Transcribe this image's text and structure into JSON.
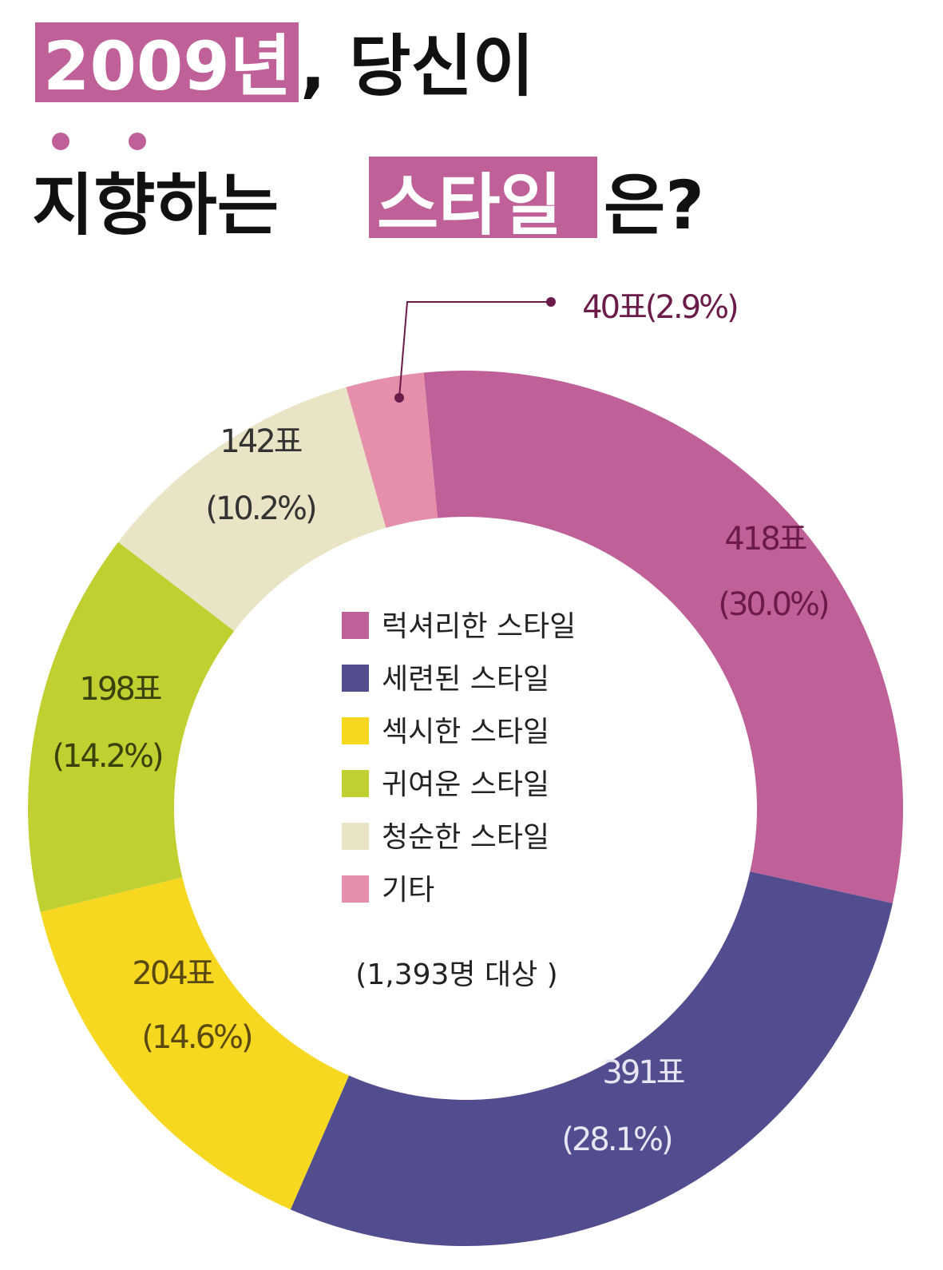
{
  "title": {
    "line1_highlight": "2009년",
    "line1_rest": ", 당신이",
    "line2_prefix": "지향하는 ",
    "line2_highlight": "스타일",
    "line2_suffix": "은?"
  },
  "colors": {
    "accent": "#bf6198",
    "title": "#111111"
  },
  "chart_data": {
    "type": "pie",
    "donut": true,
    "total_label": "(1,393명 대상 )",
    "categories": [
      "럭셔리한 스타일",
      "세련된 스타일",
      "섹시한 스타일",
      "귀여운 스타일",
      "청순한 스타일",
      "기타"
    ],
    "values": [
      418,
      391,
      204,
      198,
      142,
      40
    ],
    "percents": [
      30.0,
      28.1,
      14.6,
      14.2,
      10.2,
      2.9
    ],
    "colors": [
      "#bf6198",
      "#524d8f",
      "#f7d820",
      "#c0d030",
      "#e9e4c6",
      "#e58fab"
    ],
    "labels": [
      {
        "votes": "418표",
        "pct": "(30.0%)",
        "color": "#6b1b4a"
      },
      {
        "votes": "391표",
        "pct": "(28.1%)",
        "color": "#e8e6f4"
      },
      {
        "votes": "204표",
        "pct": "(14.6%)",
        "color": "#5a4a10"
      },
      {
        "votes": "198표",
        "pct": "(14.2%)",
        "color": "#3a420c"
      },
      {
        "votes": "142표",
        "pct": "(10.2%)",
        "color": "#333333"
      },
      {
        "votes": "40표(2.9%)",
        "pct": "",
        "color": "#6b1b4a"
      }
    ],
    "legend_placement": "center"
  }
}
